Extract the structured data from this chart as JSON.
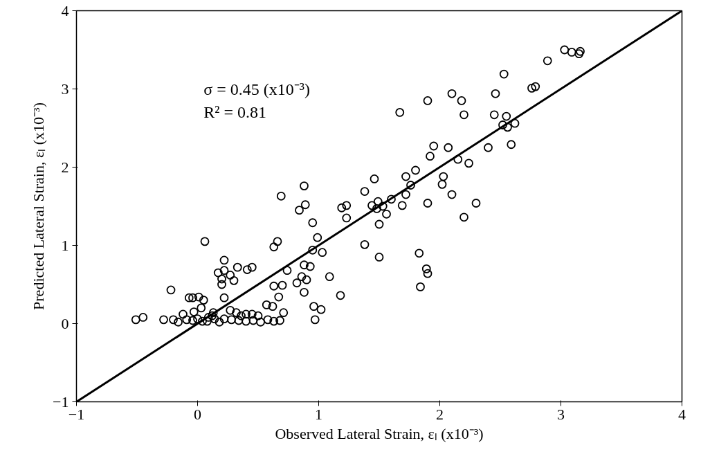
{
  "chart_data": {
    "type": "scatter",
    "xlabel": "Observed Lateral Strain, εₗ (x10⁻³)",
    "ylabel": "Predicted Lateral Strain, εₗ (x10⁻³)",
    "xlim": [
      -1,
      4
    ],
    "ylim": [
      -1,
      4
    ],
    "xticks": [
      -1,
      0,
      1,
      2,
      3,
      4
    ],
    "yticks": [
      -1,
      0,
      1,
      2,
      3,
      4
    ],
    "grid": false,
    "marker": "circle",
    "annotations": [
      "σ = 0.45 (x10⁻³)",
      "R² = 0.81"
    ],
    "series": [
      {
        "color": "#000000",
        "x": [
          3.03,
          3.09,
          3.15,
          3.16,
          2.89,
          2.76,
          2.79,
          2.53,
          2.46,
          2.1,
          2.18,
          1.9,
          1.67,
          2.45,
          2.2,
          2.55,
          2.52,
          2.56,
          2.62,
          1.95,
          2.59,
          2.4,
          2.07,
          1.92,
          2.15,
          2.24,
          1.8,
          1.72,
          2.03,
          2.02,
          1.76,
          1.46,
          1.38,
          2.1,
          1.72,
          1.6,
          1.53,
          1.9,
          2.3,
          1.69,
          1.49,
          1.48,
          1.44,
          1.56,
          1.5,
          1.23,
          1.19,
          1.23,
          2.2,
          1.38,
          1.5,
          1.83,
          1.89,
          1.9,
          1.84,
          1.18,
          0.88,
          0.69,
          0.89,
          0.84,
          0.95,
          0.99,
          0.95,
          1.03,
          0.66,
          0.63,
          0.74,
          0.88,
          0.93,
          0.86,
          0.9,
          0.82,
          0.88,
          1.09,
          0.7,
          0.67,
          0.71,
          0.96,
          1.02,
          0.97,
          0.06,
          -0.22,
          0.22,
          0.17,
          0.22,
          0.27,
          0.3,
          0.2,
          0.33,
          0.41,
          0.45,
          0.2,
          -0.07,
          -0.04,
          0.01,
          0.05,
          0.03,
          0.22,
          -0.03,
          0.62,
          0.57,
          0.63,
          0.27,
          0.32,
          0.4,
          0.13,
          0.09,
          -0.51,
          -0.45,
          -0.28,
          -0.2,
          -0.16,
          -0.09,
          -0.04,
          0.0,
          0.04,
          0.08,
          0.14,
          0.18,
          0.22,
          0.28,
          0.34,
          0.4,
          0.46,
          0.52,
          0.58,
          0.63,
          0.68,
          0.36,
          0.5,
          0.12,
          -0.12,
          0.45
        ],
        "values": [
          3.5,
          3.47,
          3.45,
          3.48,
          3.36,
          3.01,
          3.03,
          3.19,
          2.94,
          2.94,
          2.85,
          2.85,
          2.7,
          2.67,
          2.67,
          2.65,
          2.54,
          2.51,
          2.56,
          2.27,
          2.29,
          2.25,
          2.25,
          2.14,
          2.1,
          2.05,
          1.96,
          1.88,
          1.88,
          1.78,
          1.77,
          1.85,
          1.69,
          1.65,
          1.65,
          1.59,
          1.5,
          1.54,
          1.54,
          1.51,
          1.56,
          1.47,
          1.51,
          1.4,
          1.27,
          1.51,
          1.48,
          1.35,
          1.36,
          1.01,
          0.85,
          0.9,
          0.7,
          0.64,
          0.47,
          0.36,
          1.76,
          1.63,
          1.52,
          1.45,
          1.29,
          1.1,
          0.94,
          0.91,
          1.05,
          0.98,
          0.68,
          0.75,
          0.73,
          0.6,
          0.56,
          0.52,
          0.4,
          0.6,
          0.49,
          0.34,
          0.14,
          0.22,
          0.18,
          0.05,
          1.05,
          0.43,
          0.81,
          0.65,
          0.68,
          0.62,
          0.55,
          0.57,
          0.72,
          0.69,
          0.72,
          0.5,
          0.33,
          0.33,
          0.34,
          0.3,
          0.2,
          0.33,
          0.15,
          0.22,
          0.24,
          0.48,
          0.17,
          0.14,
          0.12,
          0.14,
          0.08,
          0.05,
          0.08,
          0.05,
          0.05,
          0.02,
          0.05,
          0.04,
          0.06,
          0.03,
          0.03,
          0.06,
          0.02,
          0.06,
          0.05,
          0.04,
          0.03,
          0.04,
          0.02,
          0.05,
          0.03,
          0.04,
          0.1,
          0.1,
          0.1,
          0.12,
          0.12
        ]
      },
      {
        "type": "line",
        "color": "#000000",
        "x": [
          -1,
          4
        ],
        "values": [
          -1,
          4
        ],
        "marker": "none",
        "line_style": "solid"
      }
    ]
  }
}
